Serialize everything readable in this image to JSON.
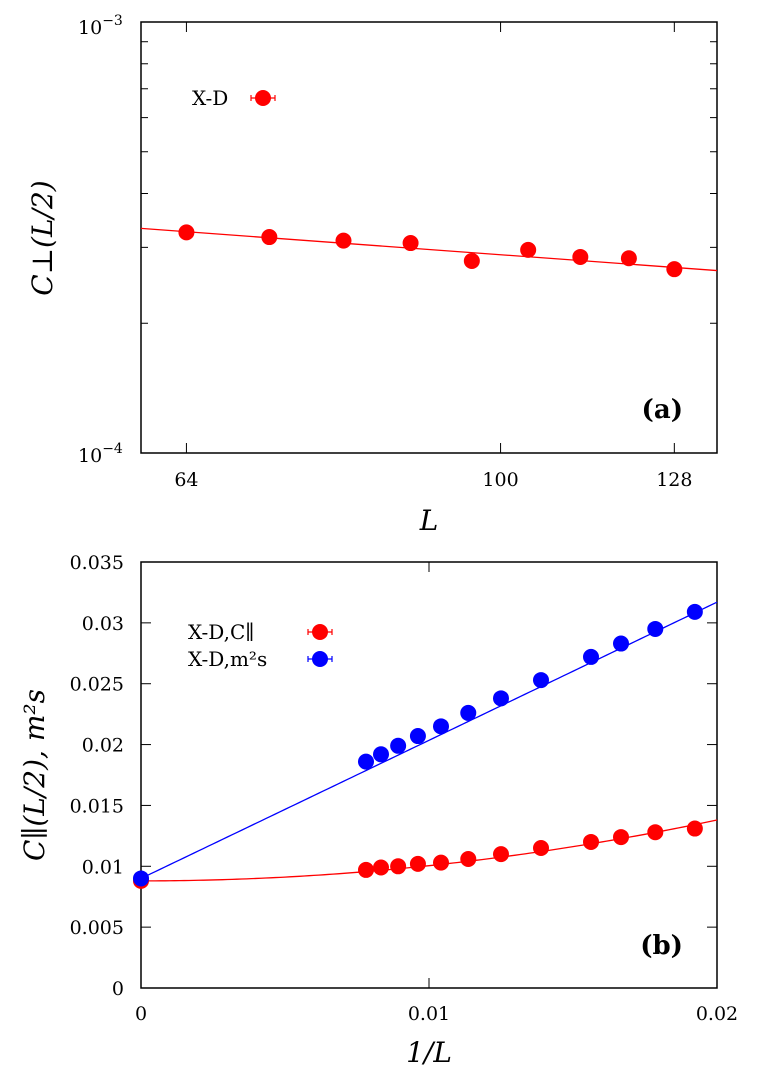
{
  "colors": {
    "red": "#ff0000",
    "blue": "#0000ff",
    "red_fit": "#ff0000",
    "blue_fit": "#0000ff"
  },
  "chart_data": [
    {
      "type": "scatter",
      "panel_label": "(a)",
      "xscale": "log",
      "yscale": "log",
      "xlim": [
        60,
        136
      ],
      "ylim": [
        0.0001,
        0.001
      ],
      "xticks": [
        64,
        100,
        128
      ],
      "xtick_labels": [
        "64",
        "100",
        "128"
      ],
      "ytick_labels": {
        "lower": "10",
        "lower_exp": "−4",
        "upper": "10",
        "upper_exp": "−3"
      },
      "xlabel": "L",
      "ylabel": "C⊥(L/2)",
      "legend": [
        {
          "name": "X-D",
          "color": "#ff0000"
        }
      ],
      "series": [
        {
          "name": "X-D",
          "color": "#ff0000",
          "x": [
            64,
            72,
            80,
            88,
            96,
            104,
            112,
            120,
            128
          ],
          "y": [
            0.000325,
            0.000317,
            0.000311,
            0.000307,
            0.000279,
            0.000296,
            0.000285,
            0.000283,
            0.000267
          ]
        }
      ],
      "fit": {
        "color": "#ff0000",
        "x": [
          60,
          136
        ],
        "y": [
          0.000332,
          0.000265
        ]
      }
    },
    {
      "type": "scatter",
      "panel_label": "(b)",
      "xlim": [
        0,
        0.02
      ],
      "ylim": [
        0,
        0.035
      ],
      "xticks": [
        0,
        0.01,
        0.02
      ],
      "xtick_labels": [
        "0",
        "0.01",
        "0.02"
      ],
      "yticks": [
        0,
        0.005,
        0.01,
        0.015,
        0.02,
        0.025,
        0.03,
        0.035
      ],
      "ytick_labels": [
        "0",
        "0.005",
        "0.01",
        "0.015",
        "0.02",
        "0.025",
        "0.03",
        "0.035"
      ],
      "xlabel": "1/L",
      "ylabel": "C∥(L/2), m²s",
      "legend": [
        {
          "name": "X-D,C∥",
          "color": "#ff0000"
        },
        {
          "name": "X-D,m²s",
          "color": "#0000ff"
        }
      ],
      "series": [
        {
          "name": "X-D,C∥",
          "color": "#ff0000",
          "x": [
            0,
            0.0078125,
            0.0083333,
            0.0089286,
            0.0096154,
            0.0104167,
            0.0113636,
            0.0125,
            0.0138889,
            0.015625,
            0.0166667,
            0.0178571,
            0.0192308
          ],
          "y": [
            0.0088,
            0.0097,
            0.0099,
            0.01,
            0.0102,
            0.0103,
            0.0106,
            0.011,
            0.0115,
            0.012,
            0.0124,
            0.0128,
            0.0131
          ]
        },
        {
          "name": "X-D,m²s",
          "color": "#0000ff",
          "x": [
            0,
            0.0078125,
            0.0083333,
            0.0089286,
            0.0096154,
            0.0104167,
            0.0113636,
            0.0125,
            0.0138889,
            0.015625,
            0.0166667,
            0.0178571,
            0.0192308
          ],
          "y": [
            0.009,
            0.0186,
            0.0192,
            0.0199,
            0.0207,
            0.0215,
            0.0226,
            0.0238,
            0.0253,
            0.0272,
            0.0283,
            0.0295,
            0.0309
          ]
        }
      ],
      "fits": [
        {
          "series": "X-D,C∥",
          "color": "#ff0000",
          "form": "a + b x^2",
          "a": 0.0088,
          "b": 12.5
        },
        {
          "series": "X-D,m²s",
          "color": "#0000ff",
          "form": "a + b x",
          "a": 0.009,
          "b": 1.135
        }
      ]
    }
  ]
}
